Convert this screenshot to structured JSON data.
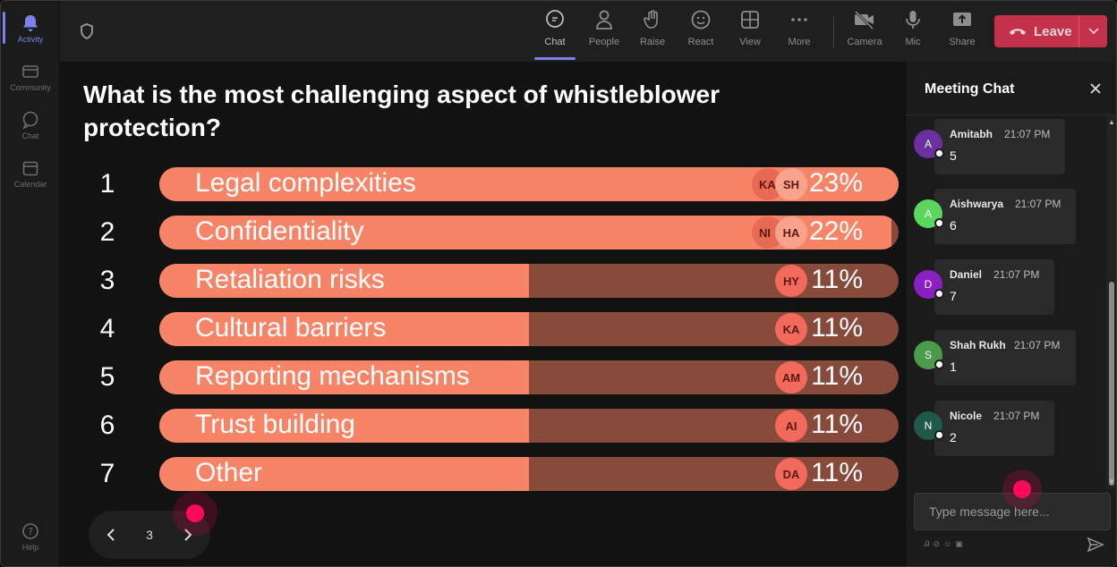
{
  "rail": {
    "items": [
      {
        "label": "Activity"
      },
      {
        "label": "Community"
      },
      {
        "label": "Chat"
      },
      {
        "label": "Calendar"
      },
      {
        "label": "Help"
      }
    ]
  },
  "toolbar": {
    "chat": "Chat",
    "people": "People",
    "raise": "Raise",
    "react": "React",
    "view": "View",
    "more": "More",
    "camera": "Camera",
    "mic": "Mic",
    "share": "Share",
    "leave": "Leave"
  },
  "poll": {
    "question": "What is the most challenging aspect of whistleblower protection?",
    "options": [
      {
        "num": "1",
        "label": "Legal complexities",
        "percent": "23%",
        "fill": 1.0,
        "avatars": [
          "KA",
          "SH"
        ]
      },
      {
        "num": "2",
        "label": "Confidentiality",
        "percent": "22%",
        "fill": 0.99,
        "avatars": [
          "NI",
          "HA"
        ]
      },
      {
        "num": "3",
        "label": "Retaliation risks",
        "percent": "11%",
        "fill": 0.5,
        "avatars": [
          "HY"
        ]
      },
      {
        "num": "4",
        "label": "Cultural barriers",
        "percent": "11%",
        "fill": 0.5,
        "avatars": [
          "KA"
        ]
      },
      {
        "num": "5",
        "label": "Reporting mechanisms",
        "percent": "11%",
        "fill": 0.5,
        "avatars": [
          "AM"
        ]
      },
      {
        "num": "6",
        "label": "Trust building",
        "percent": "11%",
        "fill": 0.5,
        "avatars": [
          "AI"
        ]
      },
      {
        "num": "7",
        "label": "Other",
        "percent": "11%",
        "fill": 0.5,
        "avatars": [
          "DA"
        ]
      }
    ],
    "page": "3"
  },
  "chat": {
    "title": "Meeting Chat",
    "messages": [
      {
        "initial": "A",
        "name": "Amitabh",
        "time": "21:07 PM",
        "text": "5",
        "color": "#6b2fa0"
      },
      {
        "initial": "A",
        "name": "Aishwarya",
        "time": "21:07 PM",
        "text": "6",
        "color": "#5cd65c"
      },
      {
        "initial": "D",
        "name": "Daniel",
        "time": "21:07 PM",
        "text": "7",
        "color": "#8a1fc4"
      },
      {
        "initial": "S",
        "name": "Shah Rukh",
        "time": "21:07 PM",
        "text": "1",
        "color": "#4c9a4c"
      },
      {
        "initial": "N",
        "name": "Nicole",
        "time": "21:07 PM",
        "text": "2",
        "color": "#1f5a48"
      }
    ],
    "placeholder": "Type message here..."
  },
  "colors": {
    "accent": "#7b83eb",
    "leave": "#c4314b",
    "bar_fill": "#f78466",
    "bar_track": "#874a3b"
  }
}
